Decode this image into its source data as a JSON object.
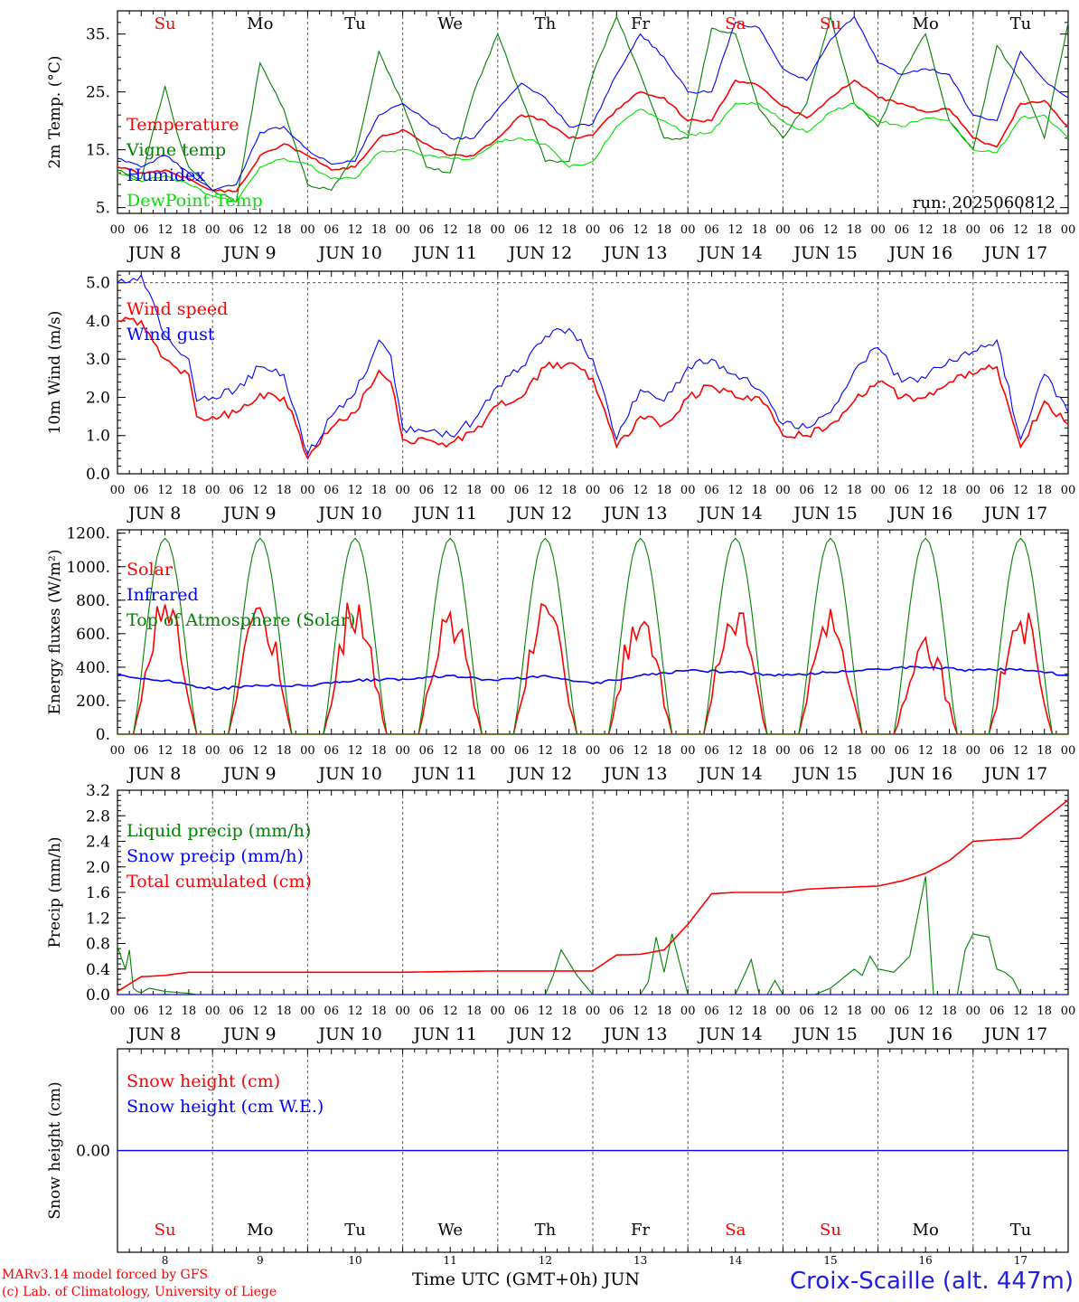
{
  "run_label": "run: 2025060812",
  "footer": {
    "model_line": "MARv3.14 model forced by GFS",
    "copyright_line": "(c) Lab. of Climatology, University of Liege",
    "x_title": "Time UTC (GMT+0h) JUN",
    "station": "Croix-Scaille (alt. 447m)"
  },
  "colors": {
    "red": "#ff0000",
    "green": "#008000",
    "blue": "#0000ff",
    "lightgreen": "#00e000",
    "grid": "#555555"
  },
  "days": {
    "weekdays": [
      "Su",
      "Mo",
      "Tu",
      "We",
      "Th",
      "Fr",
      "Sa",
      "Su",
      "Mo",
      "Tu"
    ],
    "weekend": [
      true,
      false,
      false,
      false,
      false,
      false,
      true,
      true,
      false,
      false
    ],
    "date_labels": [
      "JUN  8",
      "JUN  9",
      "JUN 10",
      "JUN 11",
      "JUN 12",
      "JUN 13",
      "JUN 14",
      "JUN 15",
      "JUN 16",
      "JUN 17"
    ],
    "day_numbers": [
      "8",
      "9",
      "10",
      "11",
      "12",
      "13",
      "14",
      "15",
      "16",
      "17"
    ],
    "hour_labels": [
      "00",
      "06",
      "12",
      "18"
    ],
    "final_hour": "00"
  },
  "chart_data": [
    {
      "id": "temp",
      "type": "line",
      "ylabel": "2m Temp. (°C)",
      "yticks": [
        "5.",
        "15.",
        "25.",
        "35."
      ],
      "ytick_values": [
        5,
        15,
        25,
        35
      ],
      "ylim": [
        4,
        39
      ],
      "x_unit": "hours since JUN 8 00 UTC",
      "xlim": [
        0,
        240
      ],
      "series": [
        {
          "name": "Temperature",
          "color": "#ff0000",
          "x": [
            0,
            6,
            12,
            18,
            24,
            30,
            36,
            42,
            48,
            54,
            60,
            66,
            72,
            78,
            84,
            90,
            96,
            102,
            108,
            114,
            120,
            126,
            132,
            138,
            144,
            150,
            156,
            162,
            168,
            174,
            180,
            186,
            192,
            198,
            204,
            210,
            216,
            222,
            228,
            234,
            240
          ],
          "values": [
            12,
            11,
            11.5,
            10,
            8,
            7.8,
            14,
            16,
            14,
            11.5,
            12,
            17,
            18.5,
            16,
            14,
            14,
            17,
            21,
            20,
            17,
            17.5,
            22,
            25,
            24,
            20,
            20,
            27,
            26,
            22.5,
            20.5,
            24,
            27,
            24,
            23,
            21.5,
            22,
            17,
            15.5,
            23,
            23.5,
            19
          ]
        },
        {
          "name": "Vigne temp",
          "color": "#008000",
          "x": [
            0,
            6,
            12,
            15,
            18,
            24,
            30,
            36,
            42,
            48,
            54,
            60,
            66,
            72,
            78,
            84,
            90,
            96,
            102,
            108,
            114,
            120,
            126,
            132,
            138,
            144,
            150,
            156,
            162,
            168,
            174,
            180,
            186,
            192,
            198,
            204,
            210,
            216,
            222,
            228,
            234,
            240
          ],
          "values": [
            11.5,
            10,
            26,
            18,
            12,
            8,
            6,
            30,
            22,
            9,
            8,
            14,
            32,
            23,
            12,
            11,
            25,
            35,
            24,
            13,
            13,
            28,
            38,
            28,
            17,
            17,
            36,
            35,
            22,
            17,
            23,
            38,
            23,
            19,
            28,
            35,
            20,
            15,
            33,
            27,
            17,
            37
          ]
        },
        {
          "name": "Humidex",
          "color": "#0000ff",
          "x": [
            0,
            6,
            12,
            18,
            24,
            30,
            36,
            42,
            48,
            54,
            60,
            66,
            72,
            78,
            84,
            90,
            96,
            102,
            108,
            114,
            120,
            126,
            132,
            138,
            144,
            150,
            156,
            162,
            168,
            174,
            180,
            186,
            192,
            198,
            204,
            210,
            216,
            222,
            228,
            234,
            240
          ],
          "values": [
            13.5,
            12,
            14,
            11,
            8,
            9,
            18,
            19,
            15,
            12.5,
            13,
            21,
            23,
            20,
            17,
            17,
            22,
            26.5,
            24,
            19,
            19.5,
            28,
            35,
            31,
            25,
            25,
            37,
            36,
            29,
            27,
            34,
            38,
            30,
            28,
            29,
            28,
            21,
            20,
            32,
            27,
            24
          ]
        },
        {
          "name": "DewPoint Temp",
          "color": "#00e000",
          "x": [
            0,
            6,
            12,
            18,
            24,
            30,
            36,
            42,
            48,
            54,
            60,
            66,
            72,
            78,
            84,
            90,
            96,
            102,
            108,
            114,
            120,
            126,
            132,
            138,
            144,
            150,
            156,
            162,
            168,
            174,
            180,
            186,
            192,
            198,
            204,
            210,
            216,
            222,
            228,
            234,
            240
          ],
          "values": [
            11,
            9.5,
            10.5,
            9,
            7,
            6,
            12,
            13.5,
            12.5,
            10,
            10,
            14.5,
            15,
            14,
            13.5,
            13.5,
            16.5,
            17,
            16,
            12,
            13,
            19,
            22,
            20,
            17.5,
            18,
            23,
            23,
            20,
            18,
            21.5,
            23,
            20,
            19,
            20.5,
            20,
            15,
            14.5,
            20.5,
            21,
            17
          ]
        }
      ]
    },
    {
      "id": "wind",
      "type": "line",
      "ylabel": "10m Wind (m/s)",
      "yticks": [
        "0.0",
        "1.0",
        "2.0",
        "3.0",
        "4.0",
        "5.0"
      ],
      "ytick_values": [
        0,
        1,
        2,
        3,
        4,
        5
      ],
      "ylim": [
        0,
        5.3
      ],
      "reference_line": 5,
      "x_unit": "hours since JUN 8 00 UTC",
      "xlim": [
        0,
        240
      ],
      "series": [
        {
          "name": "Wind speed",
          "color": "#ff0000",
          "x": [
            0,
            6,
            12,
            18,
            20,
            24,
            30,
            36,
            42,
            45,
            48,
            54,
            60,
            66,
            69,
            72,
            78,
            84,
            90,
            96,
            102,
            108,
            114,
            120,
            126,
            132,
            138,
            144,
            150,
            156,
            162,
            168,
            174,
            180,
            186,
            192,
            198,
            204,
            210,
            216,
            222,
            228,
            234,
            240
          ],
          "values": [
            4.0,
            4.0,
            3.0,
            2.6,
            1.5,
            1.5,
            1.6,
            2.1,
            2.0,
            1.3,
            0.4,
            1.2,
            1.6,
            2.7,
            2.4,
            0.9,
            0.9,
            0.8,
            1.1,
            1.8,
            2.0,
            2.8,
            2.9,
            2.5,
            0.7,
            1.5,
            1.3,
            2.0,
            2.3,
            2.0,
            2.0,
            1.0,
            1.0,
            1.3,
            1.9,
            2.4,
            2.0,
            2.0,
            2.4,
            2.6,
            2.8,
            0.7,
            1.9,
            1.3
          ]
        },
        {
          "name": "Wind gust",
          "color": "#0000ff",
          "x": [
            0,
            6,
            12,
            18,
            20,
            24,
            30,
            36,
            42,
            45,
            48,
            54,
            60,
            66,
            69,
            72,
            78,
            84,
            90,
            96,
            102,
            108,
            114,
            120,
            126,
            132,
            138,
            144,
            150,
            156,
            162,
            168,
            174,
            180,
            186,
            192,
            198,
            204,
            210,
            216,
            222,
            228,
            234,
            240
          ],
          "values": [
            5.0,
            5.2,
            3.6,
            3.0,
            1.9,
            2.0,
            2.2,
            2.8,
            2.6,
            1.6,
            0.5,
            1.5,
            2.1,
            3.5,
            3.1,
            1.2,
            1.1,
            1.0,
            1.4,
            2.3,
            2.8,
            3.6,
            3.8,
            3.0,
            0.9,
            2.2,
            1.9,
            2.8,
            3.0,
            2.6,
            2.2,
            1.3,
            1.2,
            1.6,
            2.7,
            3.3,
            2.4,
            2.5,
            3.0,
            3.2,
            3.5,
            0.9,
            2.6,
            1.6
          ]
        }
      ]
    },
    {
      "id": "energy",
      "type": "line",
      "ylabel": "Energy fluxes (W/m²)",
      "yticks": [
        "0.",
        "200.",
        "400.",
        "600.",
        "800.",
        "1000.",
        "1200."
      ],
      "ytick_values": [
        0,
        200,
        400,
        600,
        800,
        1000,
        1200
      ],
      "ylim": [
        0,
        1220
      ],
      "x_unit": "hours since JUN 8 00 UTC",
      "xlim": [
        0,
        240
      ],
      "series": [
        {
          "name": "Solar",
          "color": "#ff0000",
          "daily_peak_at_hour_12": [
            920,
            890,
            880,
            810,
            870,
            840,
            860,
            800,
            650,
            800
          ]
        },
        {
          "name": "Infrared",
          "color": "#0000ff",
          "x": [
            0,
            12,
            24,
            36,
            48,
            60,
            72,
            84,
            96,
            108,
            120,
            132,
            144,
            156,
            168,
            180,
            192,
            204,
            216,
            228,
            240
          ],
          "values": [
            350,
            320,
            270,
            290,
            290,
            320,
            330,
            350,
            320,
            350,
            300,
            350,
            380,
            370,
            350,
            370,
            390,
            400,
            380,
            390,
            350
          ]
        },
        {
          "name": "Top of Atmosphere (Solar)",
          "color": "#008000",
          "daily_peak_at_hour_12": [
            1170,
            1170,
            1170,
            1170,
            1170,
            1170,
            1170,
            1170,
            1170,
            1170
          ]
        }
      ]
    },
    {
      "id": "precip",
      "type": "line",
      "ylabel": "Precip (mm/h)",
      "yticks": [
        "0.0",
        "0.4",
        "0.8",
        "1.2",
        "1.6",
        "2.0",
        "2.4",
        "2.8",
        "3.2"
      ],
      "ytick_values": [
        0,
        0.4,
        0.8,
        1.2,
        1.6,
        2.0,
        2.4,
        2.8,
        3.2
      ],
      "ylim": [
        0,
        3.2
      ],
      "x_unit": "hours since JUN 8 00 UTC",
      "xlim": [
        0,
        240
      ],
      "series": [
        {
          "name": "Liquid precip (mm/h)",
          "color": "#008000",
          "x": [
            0,
            2,
            3,
            4,
            5,
            6,
            8,
            12,
            18,
            20,
            24,
            96,
            108,
            110,
            112,
            114,
            116,
            120,
            132,
            134,
            136,
            138,
            140,
            144,
            156,
            160,
            162,
            164,
            166,
            168,
            176,
            180,
            186,
            188,
            190,
            192,
            196,
            200,
            204,
            206,
            208,
            210,
            212,
            214,
            216,
            220,
            222,
            224,
            226,
            228,
            232,
            236,
            240
          ],
          "values": [
            0.75,
            0.4,
            0.7,
            0.1,
            0.05,
            0.03,
            0.1,
            0.05,
            0.02,
            0,
            0,
            0,
            0,
            0.3,
            0.7,
            0.5,
            0.3,
            0,
            0,
            0.2,
            0.9,
            0.35,
            0.95,
            0,
            0,
            0.55,
            0,
            0,
            0.22,
            0,
            0,
            0.1,
            0.4,
            0.3,
            0.6,
            0.4,
            0.35,
            0.6,
            1.85,
            0,
            0,
            0,
            0,
            0.7,
            0.95,
            0.9,
            0.4,
            0.35,
            0.25,
            0,
            0,
            0,
            0
          ]
        },
        {
          "name": "Snow precip (mm/h)",
          "color": "#0000ff",
          "x": [
            0,
            240
          ],
          "values": [
            0,
            0
          ]
        },
        {
          "name": "Total cumulated (cm)",
          "color": "#ff0000",
          "x": [
            0,
            6,
            12,
            18,
            24,
            48,
            72,
            96,
            108,
            120,
            126,
            132,
            138,
            144,
            150,
            156,
            168,
            174,
            180,
            192,
            198,
            204,
            210,
            216,
            228,
            240
          ],
          "values": [
            0.05,
            0.28,
            0.3,
            0.35,
            0.35,
            0.35,
            0.35,
            0.37,
            0.37,
            0.37,
            0.62,
            0.63,
            0.7,
            1.1,
            1.58,
            1.6,
            1.6,
            1.65,
            1.67,
            1.7,
            1.78,
            1.9,
            2.1,
            2.4,
            2.45,
            3.05
          ]
        }
      ]
    },
    {
      "id": "snow",
      "type": "line",
      "ylabel": "Snow height (cm)",
      "yticks": [
        "0.00"
      ],
      "ytick_values": [
        0
      ],
      "ylim": [
        -1,
        1
      ],
      "x_unit": "hours since JUN 8 00 UTC",
      "xlim": [
        0,
        240
      ],
      "series": [
        {
          "name": "Snow height (cm)",
          "color": "#ff0000",
          "x": [
            0,
            240
          ],
          "values": [
            0,
            0
          ]
        },
        {
          "name": "Snow height (cm W.E.)",
          "color": "#0000ff",
          "x": [
            0,
            240
          ],
          "values": [
            0,
            0
          ]
        }
      ]
    }
  ]
}
